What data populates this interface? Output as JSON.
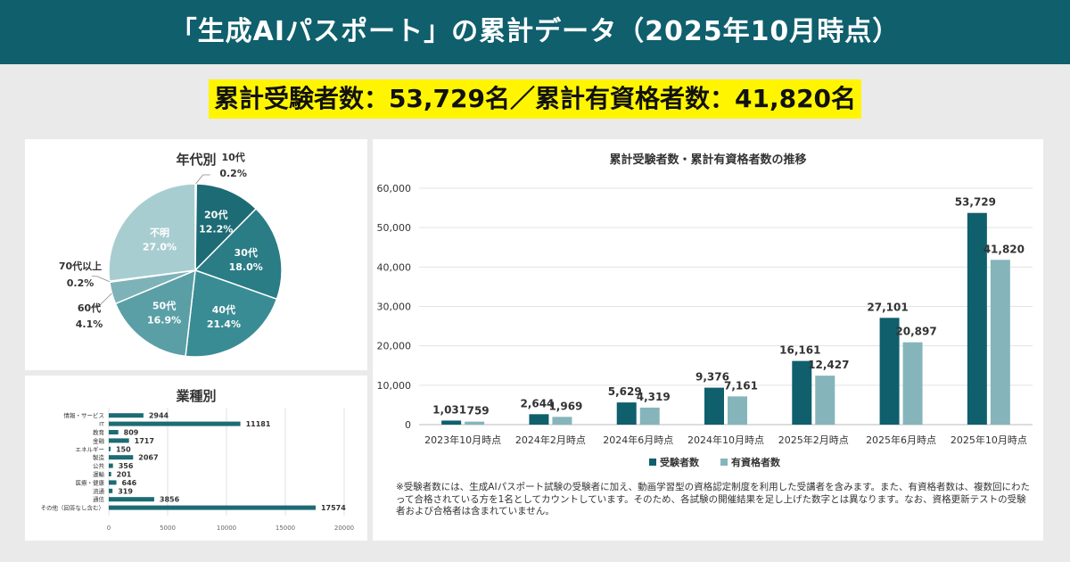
{
  "header": {
    "title": "「生成AIパスポート」の累計データ（2025年10月時点）"
  },
  "summary": {
    "text": "累計受験者数：53,729名／累計有資格者数：41,820名"
  },
  "chart_data": [
    {
      "type": "pie",
      "title": "年代別",
      "slices": [
        {
          "label": "10代",
          "value": 0.2,
          "display": "0.2%",
          "color": "#2a6f7a"
        },
        {
          "label": "20代",
          "value": 12.2,
          "display": "12.2%",
          "color": "#1d6b74"
        },
        {
          "label": "30代",
          "value": 18.0,
          "display": "18.0%",
          "color": "#2a7c85"
        },
        {
          "label": "40代",
          "value": 21.4,
          "display": "21.4%",
          "color": "#3a8c94"
        },
        {
          "label": "50代",
          "value": 16.9,
          "display": "16.9%",
          "color": "#5a9fa6"
        },
        {
          "label": "60代",
          "value": 4.1,
          "display": "4.1%",
          "color": "#7db3b8"
        },
        {
          "label": "70代以上",
          "value": 0.2,
          "display": "0.2%",
          "color": "#95c3c7"
        },
        {
          "label": "不明",
          "value": 27.0,
          "display": "27.0%",
          "color": "#a8cdd1"
        }
      ]
    },
    {
      "type": "bar",
      "orientation": "horizontal",
      "title": "業種別",
      "categories": [
        "情報・サービス",
        "IT",
        "教育",
        "金融",
        "エネルギー",
        "製造",
        "公共",
        "運輸",
        "医療・健康",
        "流通",
        "通信",
        "その他（回答なし含む）"
      ],
      "values": [
        2944,
        11181,
        809,
        1717,
        150,
        2067,
        356,
        201,
        646,
        319,
        3856,
        17574
      ],
      "xlim": [
        0,
        20000
      ],
      "xticks": [
        "0",
        "5000",
        "10000",
        "15000",
        "20000"
      ],
      "color": "#1d6b74"
    },
    {
      "type": "bar",
      "title": "累計受験者数・累計有資格者数の推移",
      "categories": [
        "2023年10月時点",
        "2024年2月時点",
        "2024年6月時点",
        "2024年10月時点",
        "2025年2月時点",
        "2025年6月時点",
        "2025年10月時点"
      ],
      "series": [
        {
          "name": "受験者数",
          "values": [
            1031,
            2644,
            5629,
            9376,
            16161,
            27101,
            53729
          ],
          "labels": [
            "1,031",
            "2,644",
            "5,629",
            "9,376",
            "16,161",
            "27,101",
            "53,729"
          ],
          "color": "#0f5f6d"
        },
        {
          "name": "有資格者数",
          "values": [
            759,
            1969,
            4319,
            7161,
            12427,
            20897,
            41820
          ],
          "labels": [
            "759",
            "1,969",
            "4,319",
            "7,161",
            "12,427",
            "20,897",
            "41,820"
          ],
          "color": "#85b5bb"
        }
      ],
      "ylim": [
        0,
        60000
      ],
      "yticks": [
        "0",
        "10,000",
        "20,000",
        "30,000",
        "40,000",
        "50,000",
        "60,000"
      ],
      "legend": "bottom",
      "grid": true
    }
  ],
  "note": "※受験者数には、生成AIパスポート試験の受験者に加え、動画学習型の資格認定制度を利用した受講者を含みます。また、有資格者数は、複数回にわたって合格されている方を1名としてカウントしています。そのため、各試験の開催結果を足し上げた数字とは異なります。なお、資格更新テストの受験者および合格者は含まれていません。"
}
